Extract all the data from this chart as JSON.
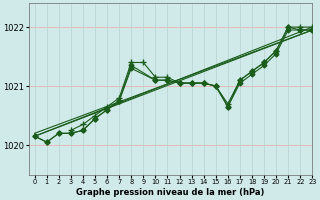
{
  "xlabel": "Graphe pression niveau de la mer (hPa)",
  "ylim": [
    1019.5,
    1022.4
  ],
  "xlim": [
    -0.5,
    23
  ],
  "yticks": [
    1020,
    1021,
    1022
  ],
  "xticks": [
    0,
    1,
    2,
    3,
    4,
    5,
    6,
    7,
    8,
    9,
    10,
    11,
    12,
    13,
    14,
    15,
    16,
    17,
    18,
    19,
    20,
    21,
    22,
    23
  ],
  "bg_color": "#d0eaea",
  "line_color": "#1a5c1a",
  "grid_color_h": "#e8b8b8",
  "grid_color_v": "#c0d8d8",
  "lines": [
    {
      "x": [
        0,
        1,
        2,
        3,
        4,
        5,
        6,
        7,
        8,
        10,
        11,
        12,
        13,
        14,
        15,
        16,
        17,
        18,
        19,
        20,
        21,
        22,
        23
      ],
      "y": [
        1020.15,
        1020.05,
        1020.2,
        1020.2,
        1020.25,
        1020.45,
        1020.6,
        1020.75,
        1021.35,
        1021.1,
        1021.1,
        1021.05,
        1021.05,
        1021.05,
        1021.0,
        1020.65,
        1021.05,
        1021.2,
        1021.35,
        1021.55,
        1021.95,
        1021.95,
        1021.95
      ],
      "marker": "D",
      "markersize": 2.5
    },
    {
      "x": [
        3,
        4,
        5,
        6,
        7,
        8,
        9,
        10,
        11,
        12,
        13,
        14,
        15,
        16,
        17,
        18,
        19,
        20,
        21,
        22,
        23
      ],
      "y": [
        1020.25,
        1020.35,
        1020.5,
        1020.65,
        1020.8,
        1021.4,
        1021.4,
        1021.15,
        1021.15,
        1021.05,
        1021.05,
        1021.05,
        1021.0,
        1020.7,
        1021.1,
        1021.25,
        1021.4,
        1021.6,
        1022.0,
        1022.0,
        1022.0
      ],
      "marker": "+",
      "markersize": 4
    },
    {
      "x": [
        0,
        1,
        2,
        3,
        4,
        5,
        6,
        7,
        8,
        10,
        11,
        12,
        13,
        14,
        15,
        16,
        17,
        18,
        19,
        20,
        21,
        22,
        23
      ],
      "y": [
        1020.15,
        1020.05,
        1020.2,
        1020.2,
        1020.25,
        1020.45,
        1020.6,
        1020.75,
        1021.3,
        1021.1,
        1021.1,
        1021.05,
        1021.05,
        1021.05,
        1021.0,
        1020.65,
        1021.1,
        1021.25,
        1021.4,
        1021.6,
        1022.0,
        1021.95,
        1021.95
      ],
      "marker": "D",
      "markersize": 2.5
    },
    {
      "x": [
        0,
        23
      ],
      "y": [
        1020.15,
        1022.0
      ],
      "marker": null,
      "markersize": 0
    },
    {
      "x": [
        0,
        23
      ],
      "y": [
        1020.2,
        1021.95
      ],
      "marker": null,
      "markersize": 0
    },
    {
      "x": [
        0,
        23
      ],
      "y": [
        1020.15,
        1021.95
      ],
      "marker": null,
      "markersize": 0
    }
  ]
}
